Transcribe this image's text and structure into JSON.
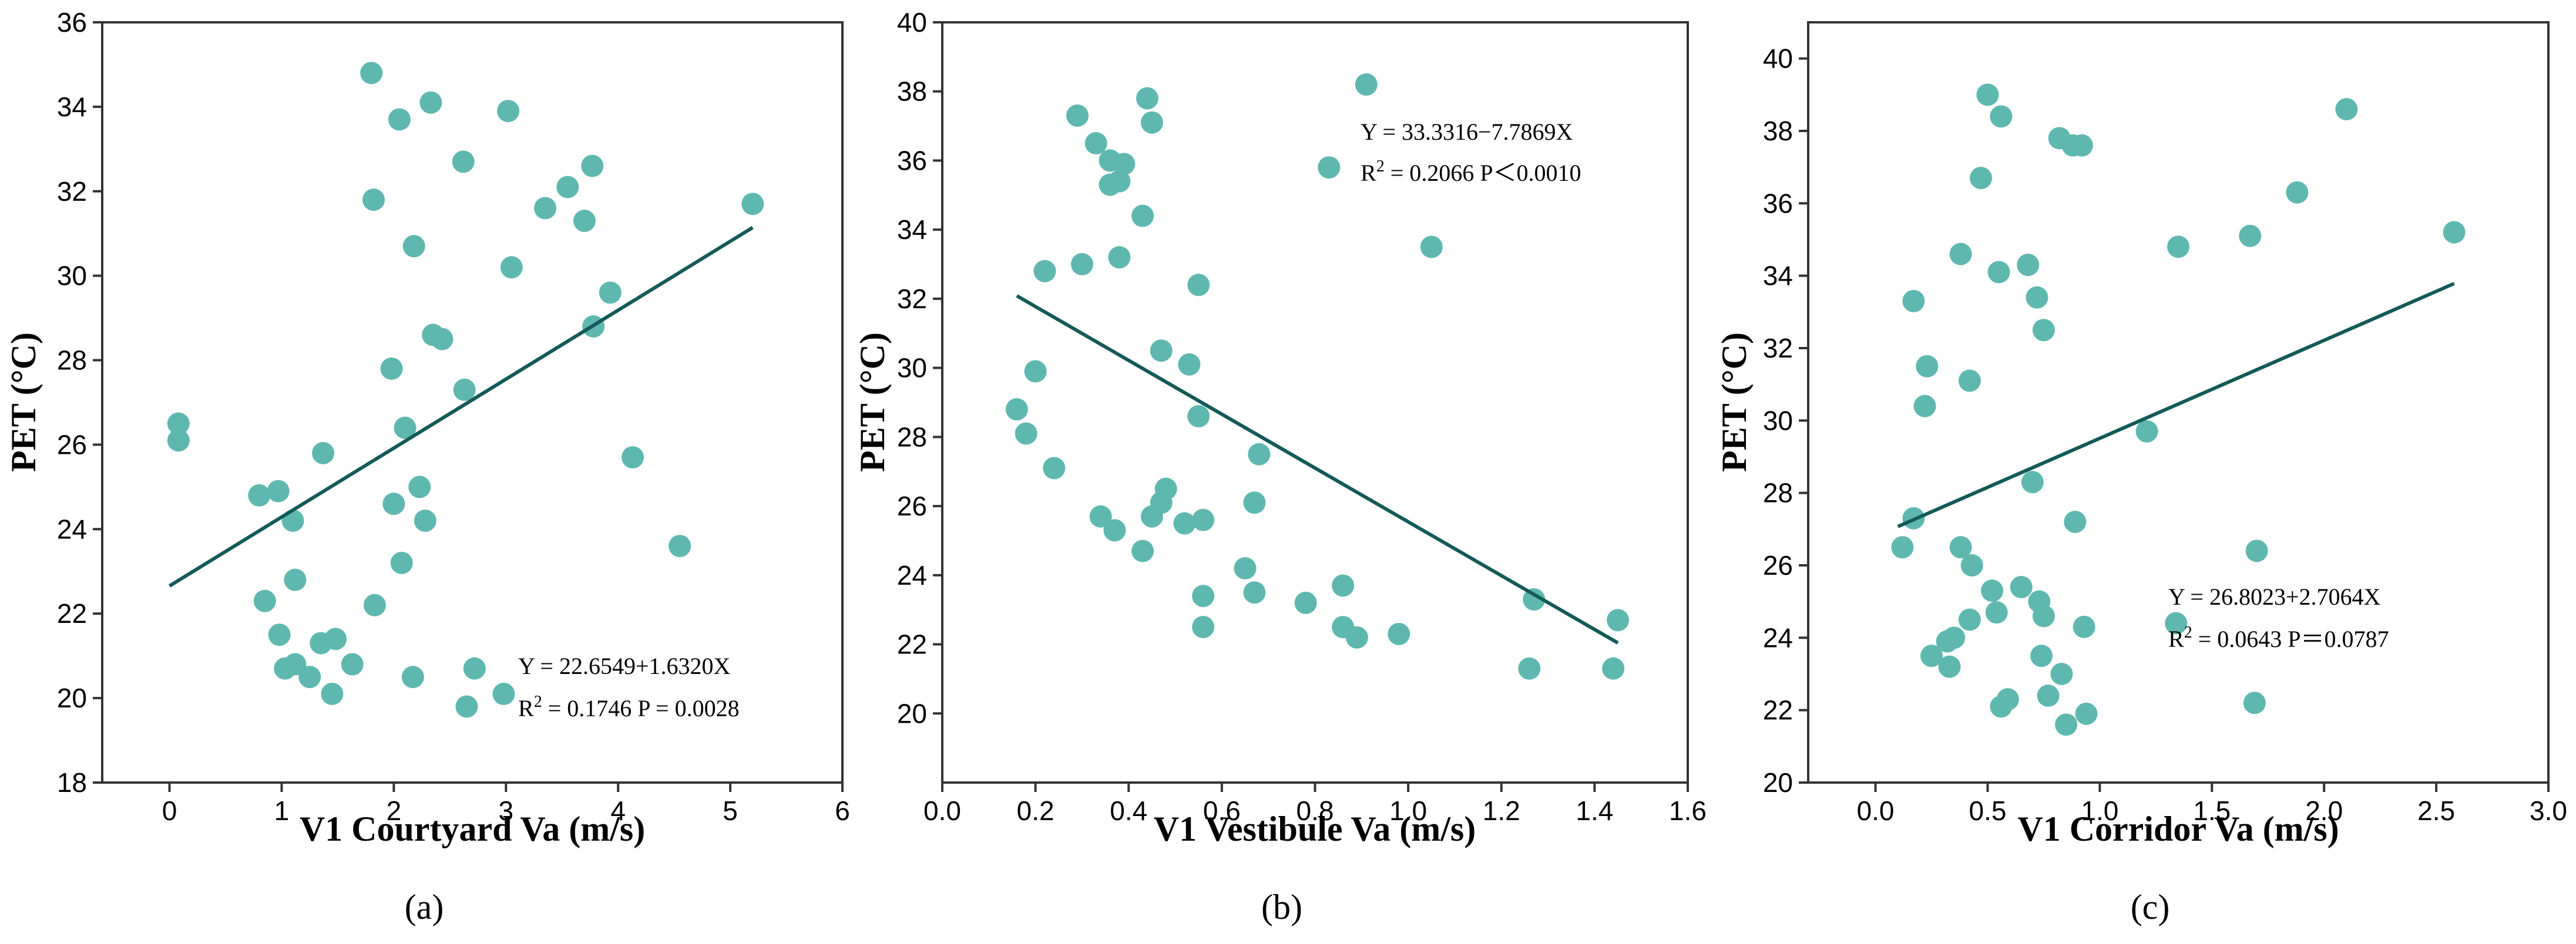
{
  "colors": {
    "point": "#5fb8b0",
    "fit_line": "#135a58",
    "axis": "#333333"
  },
  "chart_data": [
    {
      "type": "scatter",
      "panel_label": "(a)",
      "xlabel": "V1 Courtyard Va (m/s)",
      "ylabel": "PET (°C)",
      "xlim": [
        -0.6,
        6
      ],
      "ylim": [
        18,
        36
      ],
      "xticks": [
        0,
        1,
        2,
        3,
        4,
        5,
        6
      ],
      "yticks": [
        18,
        20,
        22,
        24,
        26,
        28,
        30,
        32,
        34,
        36
      ],
      "xtick_labels": [
        "0",
        "1",
        "2",
        "3",
        "4",
        "5",
        "6"
      ],
      "ytick_labels": [
        "18",
        "20",
        "22",
        "24",
        "26",
        "28",
        "30",
        "32",
        "34",
        "36"
      ],
      "annotation": {
        "equation": "Y = 22.6549+1.6320X",
        "r2_prefix": "R",
        "r2_sup": "2",
        "r2_stats": " = 0.1746   P = 0.0028"
      },
      "fit": {
        "intercept": 22.6549,
        "slope": 1.632,
        "x_range": [
          0,
          5.2
        ]
      },
      "points": [
        [
          0.08,
          26.5
        ],
        [
          0.08,
          26.1
        ],
        [
          0.8,
          24.8
        ],
        [
          0.97,
          24.9
        ],
        [
          1.1,
          24.2
        ],
        [
          0.85,
          22.3
        ],
        [
          1.12,
          22.8
        ],
        [
          0.98,
          21.5
        ],
        [
          1.03,
          20.7
        ],
        [
          1.12,
          20.8
        ],
        [
          1.25,
          20.5
        ],
        [
          1.35,
          21.3
        ],
        [
          1.48,
          21.4
        ],
        [
          1.45,
          20.1
        ],
        [
          1.63,
          20.8
        ],
        [
          1.37,
          25.8
        ],
        [
          1.8,
          34.8
        ],
        [
          1.82,
          31.8
        ],
        [
          1.98,
          27.8
        ],
        [
          2.0,
          24.6
        ],
        [
          2.05,
          33.7
        ],
        [
          2.07,
          23.2
        ],
        [
          2.1,
          26.4
        ],
        [
          2.18,
          30.7
        ],
        [
          2.23,
          25.0
        ],
        [
          2.28,
          24.2
        ],
        [
          2.33,
          34.1
        ],
        [
          2.35,
          28.6
        ],
        [
          2.43,
          28.5
        ],
        [
          2.62,
          32.7
        ],
        [
          2.63,
          27.3
        ],
        [
          2.65,
          19.8
        ],
        [
          2.72,
          20.7
        ],
        [
          2.17,
          20.5
        ],
        [
          1.83,
          22.2
        ],
        [
          2.98,
          20.1
        ],
        [
          3.02,
          33.9
        ],
        [
          3.05,
          30.2
        ],
        [
          3.35,
          31.6
        ],
        [
          3.55,
          32.1
        ],
        [
          3.7,
          31.3
        ],
        [
          3.77,
          32.6
        ],
        [
          3.78,
          28.8
        ],
        [
          3.93,
          29.6
        ],
        [
          4.13,
          25.7
        ],
        [
          4.55,
          23.6
        ],
        [
          5.2,
          31.7
        ]
      ]
    },
    {
      "type": "scatter",
      "panel_label": "(b)",
      "xlabel": "V1 Vestibule Va (m/s)",
      "ylabel": "PET (°C)",
      "xlim": [
        0.0,
        1.6
      ],
      "ylim": [
        18,
        40
      ],
      "xticks": [
        0.0,
        0.2,
        0.4,
        0.6,
        0.8,
        1.0,
        1.2,
        1.4,
        1.6
      ],
      "yticks": [
        20,
        22,
        24,
        26,
        28,
        30,
        32,
        34,
        36,
        38,
        40
      ],
      "xtick_labels": [
        "0.0",
        "0.2",
        "0.4",
        "0.6",
        "0.8",
        "1.0",
        "1.2",
        "1.4",
        "1.6"
      ],
      "ytick_labels": [
        "20",
        "22",
        "24",
        "26",
        "28",
        "30",
        "32",
        "34",
        "36",
        "38",
        "40"
      ],
      "annotation": {
        "equation": "Y = 33.3316−7.7869X",
        "r2_prefix": "R",
        "r2_sup": "2",
        "r2_stats": " = 0.2066   P＜0.0010"
      },
      "fit": {
        "intercept": 33.3316,
        "slope": -7.7869,
        "x_range": [
          0.16,
          1.45
        ]
      },
      "points": [
        [
          0.16,
          28.8
        ],
        [
          0.18,
          28.1
        ],
        [
          0.2,
          29.9
        ],
        [
          0.22,
          32.8
        ],
        [
          0.24,
          27.1
        ],
        [
          0.29,
          37.3
        ],
        [
          0.3,
          33.0
        ],
        [
          0.33,
          36.5
        ],
        [
          0.34,
          25.7
        ],
        [
          0.36,
          35.3
        ],
        [
          0.36,
          36.0
        ],
        [
          0.37,
          25.3
        ],
        [
          0.38,
          35.4
        ],
        [
          0.38,
          33.2
        ],
        [
          0.39,
          35.9
        ],
        [
          0.43,
          34.4
        ],
        [
          0.43,
          24.7
        ],
        [
          0.44,
          37.8
        ],
        [
          0.45,
          37.1
        ],
        [
          0.45,
          25.7
        ],
        [
          0.47,
          30.5
        ],
        [
          0.47,
          26.1
        ],
        [
          0.48,
          26.5
        ],
        [
          0.52,
          25.5
        ],
        [
          0.53,
          30.1
        ],
        [
          0.55,
          32.4
        ],
        [
          0.55,
          28.6
        ],
        [
          0.56,
          23.4
        ],
        [
          0.56,
          25.6
        ],
        [
          0.56,
          22.5
        ],
        [
          0.65,
          24.2
        ],
        [
          0.67,
          26.1
        ],
        [
          0.67,
          23.5
        ],
        [
          0.68,
          27.5
        ],
        [
          0.78,
          23.2
        ],
        [
          0.83,
          35.8
        ],
        [
          0.86,
          23.7
        ],
        [
          0.86,
          22.5
        ],
        [
          0.89,
          22.2
        ],
        [
          0.91,
          38.2
        ],
        [
          0.98,
          22.3
        ],
        [
          1.05,
          33.5
        ],
        [
          1.26,
          21.3
        ],
        [
          1.27,
          23.3
        ],
        [
          1.44,
          21.3
        ],
        [
          1.45,
          22.7
        ]
      ]
    },
    {
      "type": "scatter",
      "panel_label": "(c)",
      "xlabel": "V1 Corridor Va (m/s)",
      "ylabel": "PET (°C)",
      "xlim": [
        -0.3,
        3.0
      ],
      "ylim": [
        20,
        41
      ],
      "xticks": [
        0.0,
        0.5,
        1.0,
        1.5,
        2.0,
        2.5,
        3.0
      ],
      "yticks": [
        20,
        22,
        24,
        26,
        28,
        30,
        32,
        34,
        36,
        38,
        40
      ],
      "xtick_labels": [
        "0.0",
        "0.5",
        "1.0",
        "1.5",
        "2.0",
        "2.5",
        "3.0"
      ],
      "ytick_labels": [
        "20",
        "22",
        "24",
        "26",
        "28",
        "30",
        "32",
        "34",
        "36",
        "38",
        "40"
      ],
      "annotation": {
        "equation": "Y = 26.8023+2.7064X",
        "r2_prefix": "R",
        "r2_sup": "2",
        "r2_stats": " = 0.0643   P＝0.0787"
      },
      "fit": {
        "intercept": 26.8023,
        "slope": 2.7064,
        "x_range": [
          0.1,
          2.58
        ]
      },
      "points": [
        [
          0.12,
          26.5
        ],
        [
          0.17,
          33.3
        ],
        [
          0.17,
          27.3
        ],
        [
          0.23,
          31.5
        ],
        [
          0.22,
          30.4
        ],
        [
          0.25,
          23.5
        ],
        [
          0.32,
          23.9
        ],
        [
          0.33,
          23.2
        ],
        [
          0.35,
          24.0
        ],
        [
          0.38,
          34.6
        ],
        [
          0.38,
          26.5
        ],
        [
          0.42,
          31.1
        ],
        [
          0.42,
          24.5
        ],
        [
          0.43,
          26.0
        ],
        [
          0.47,
          36.7
        ],
        [
          0.5,
          39.0
        ],
        [
          0.52,
          25.3
        ],
        [
          0.54,
          24.7
        ],
        [
          0.55,
          34.1
        ],
        [
          0.56,
          38.4
        ],
        [
          0.56,
          22.1
        ],
        [
          0.59,
          22.3
        ],
        [
          0.65,
          25.4
        ],
        [
          0.68,
          34.3
        ],
        [
          0.7,
          28.3
        ],
        [
          0.72,
          33.4
        ],
        [
          0.73,
          25.0
        ],
        [
          0.74,
          23.5
        ],
        [
          0.75,
          32.5
        ],
        [
          0.75,
          24.6
        ],
        [
          0.77,
          22.4
        ],
        [
          0.82,
          37.8
        ],
        [
          0.83,
          23.0
        ],
        [
          0.85,
          21.6
        ],
        [
          0.88,
          37.6
        ],
        [
          0.89,
          27.2
        ],
        [
          0.92,
          37.6
        ],
        [
          0.93,
          24.3
        ],
        [
          0.94,
          21.9
        ],
        [
          1.21,
          29.7
        ],
        [
          1.35,
          34.8
        ],
        [
          1.34,
          24.4
        ],
        [
          1.67,
          35.1
        ],
        [
          1.69,
          22.2
        ],
        [
          1.7,
          26.4
        ],
        [
          1.88,
          36.3
        ],
        [
          2.1,
          38.6
        ],
        [
          2.58,
          35.2
        ]
      ]
    }
  ]
}
